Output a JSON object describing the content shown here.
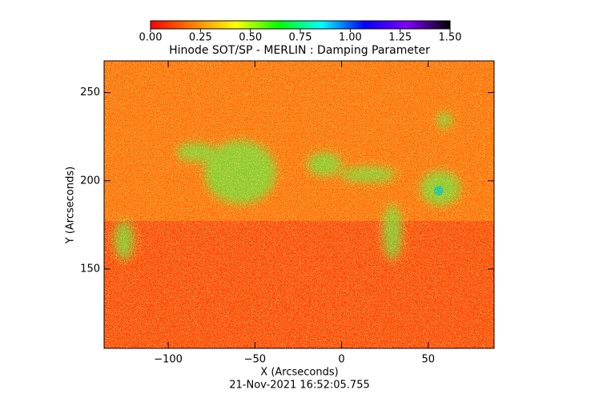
{
  "chart_data": {
    "type": "heatmap",
    "title": "Hinode SOT/SP - MERLIN : Damping Parameter",
    "x_label": "X (Arcseconds)",
    "y_label": "Y (Arcseconds)",
    "footer": "21-Nov-2021 16:52:05.755",
    "xlim": [
      -137,
      88
    ],
    "xticks": [
      {
        "value": -100,
        "label": "−100"
      },
      {
        "value": -50,
        "label": "−50"
      },
      0,
      50
    ],
    "ylim": [
      105,
      268
    ],
    "yticks": [
      150,
      200,
      250
    ],
    "colorbar_lim": [
      0,
      1.5
    ],
    "colorbar_ticks": [
      {
        "value": 0,
        "label": "0.00"
      },
      {
        "value": 0.25,
        "label": "0.25"
      },
      {
        "value": 0.5,
        "label": "0.50"
      },
      {
        "value": 0.75,
        "label": "0.75"
      },
      {
        "value": 1,
        "label": "1.00"
      },
      {
        "value": 1.25,
        "label": "1.25"
      },
      {
        "value": 1.5,
        "label": "1.50"
      }
    ],
    "colormap": [
      "#ff0000",
      "#ff8000",
      "#ffff00",
      "#00ff00",
      "#00ffff",
      "#0000ff",
      "#8000ff",
      "#000000"
    ]
  }
}
